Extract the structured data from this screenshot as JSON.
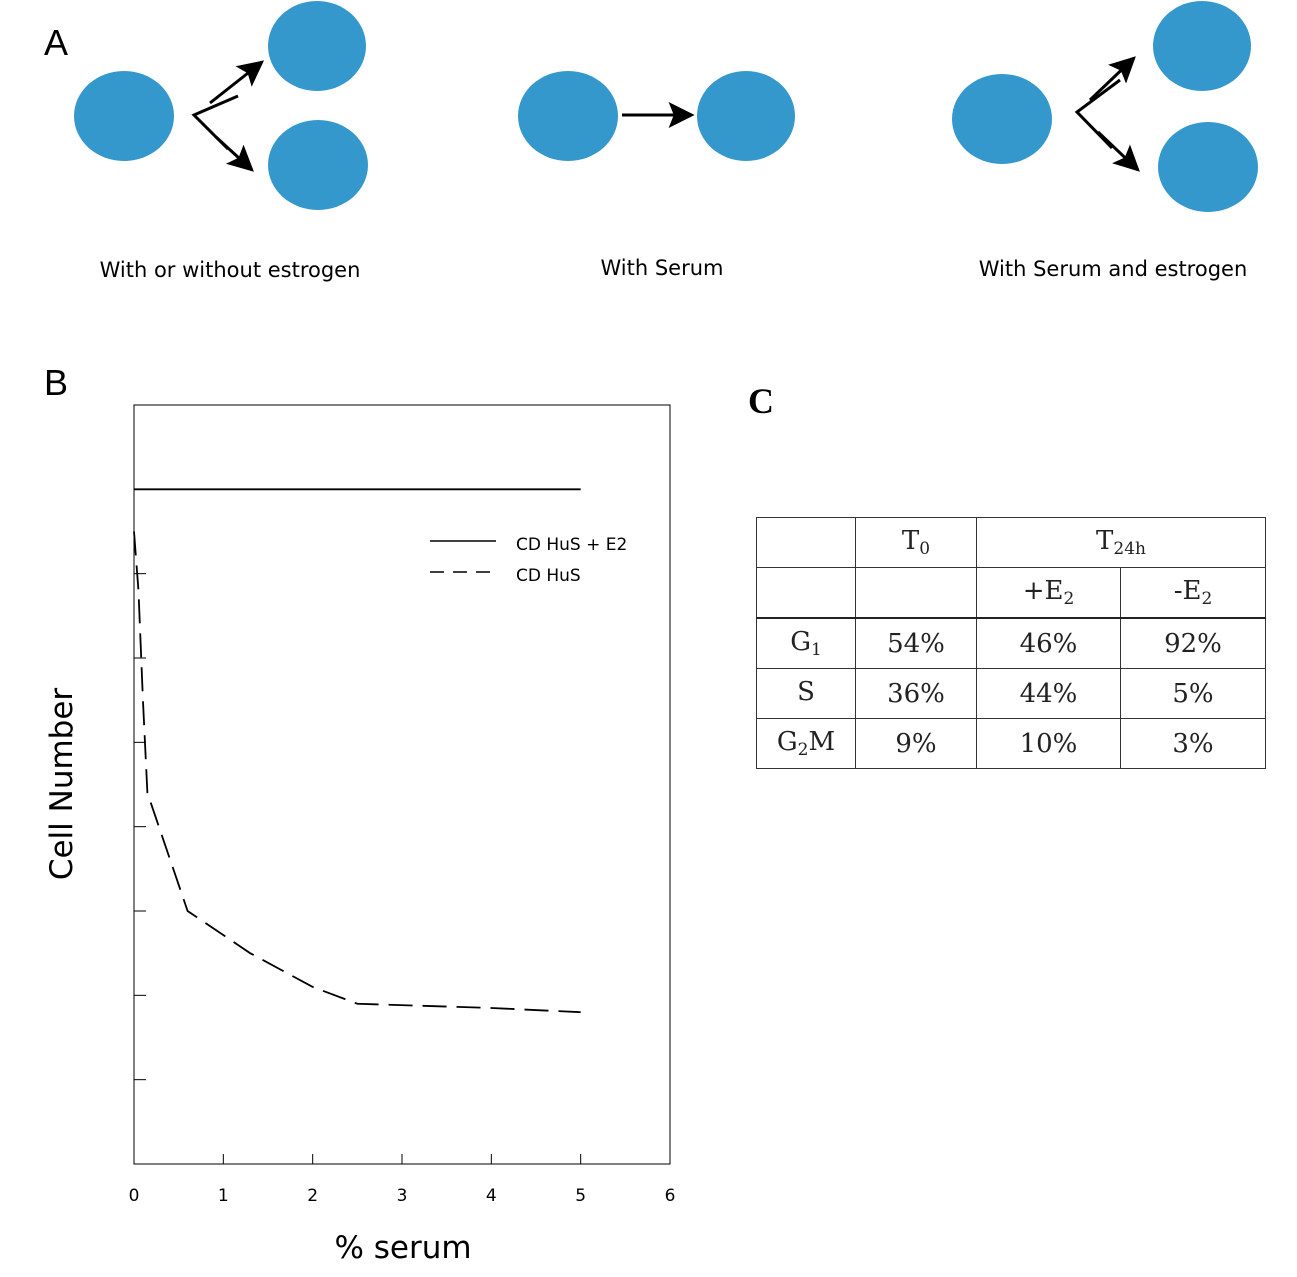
{
  "panels": {
    "a": "A",
    "b": "B",
    "c": "C"
  },
  "panel_a": {
    "cell_color": "#3498cc",
    "captions": [
      "With or without estrogen",
      "With Serum",
      "With Serum and estrogen"
    ]
  },
  "chart_data": {
    "type": "line",
    "xlabel": "% serum",
    "ylabel": "Cell Number",
    "xlim": [
      0,
      6
    ],
    "xticks": [
      "0",
      "1",
      "2",
      "3",
      "4",
      "5",
      "6"
    ],
    "ylim": [
      0,
      9
    ],
    "yticks_labeled": false,
    "grid": false,
    "legend_position": "top-right",
    "series": [
      {
        "name": "CD HuS + E2",
        "style": "solid",
        "x": [
          0,
          5
        ],
        "y": [
          8,
          8
        ]
      },
      {
        "name": "CD HuS",
        "style": "dashed",
        "x": [
          0,
          0.05,
          0.1,
          0.15,
          0.6,
          1.3,
          2.0,
          2.5,
          4.0,
          5.0
        ],
        "y": [
          7.5,
          6.8,
          5.5,
          4.4,
          3.0,
          2.5,
          2.1,
          1.9,
          1.85,
          1.8
        ]
      }
    ]
  },
  "table": {
    "col_headers": {
      "t0": "T",
      "t0_sub": "0",
      "t24": "T",
      "t24_sub": "24h"
    },
    "subheaders": {
      "plus": "+E",
      "plus_sub": "2",
      "minus": "-E",
      "minus_sub": "2"
    },
    "rows": [
      {
        "label": "G",
        "label_sub": "1",
        "label_tail": "",
        "t0": "54%",
        "plus": "46%",
        "minus": "92%"
      },
      {
        "label": "S",
        "label_sub": "",
        "label_tail": "",
        "t0": "36%",
        "plus": "44%",
        "minus": "5%"
      },
      {
        "label": "G",
        "label_sub": "2",
        "label_tail": "M",
        "t0": "9%",
        "plus": "10%",
        "minus": "3%"
      }
    ]
  }
}
